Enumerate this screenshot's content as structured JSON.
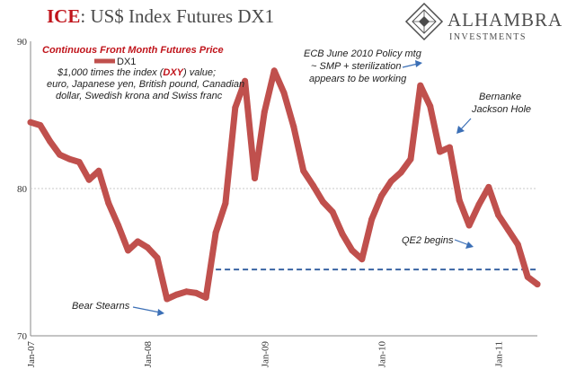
{
  "header": {
    "title_brand": "ICE",
    "title_rest": ": US$ Index Futures DX1",
    "logo_name": "ALHAMBRA",
    "logo_sub": "INVESTMENTS"
  },
  "annotations": {
    "subtitle": "Continuous Front Month Futures Price",
    "desc_line1_pre": "$1,000 times the index (",
    "desc_line1_dxy": "DXY",
    "desc_line1_post": ") value;",
    "desc_line2": "euro, Japanese yen, British pound, Canadian",
    "desc_line3": "dollar, Swedish krona and Swiss franc",
    "ecb_line1": "ECB June 2010 Policy mtg",
    "ecb_line2": "~ SMP + sterilization",
    "ecb_line3": "appears to be working",
    "bernanke_line1": "Bernanke",
    "bernanke_line2": "Jackson Hole",
    "qe2": "QE2 begins",
    "bear_stearns": "Bear Stearns"
  },
  "colors": {
    "series": "#c0504d",
    "accent_red": "#c0141b",
    "reference_line": "#2e5c9e",
    "grid": "#c8c8c8",
    "arrow": "#3b6fb6"
  },
  "chart_data": {
    "type": "line",
    "title": "ICE: US$ Index Futures DX1",
    "subtitle": "Continuous Front Month Futures Price",
    "xlabel": "",
    "ylabel": "",
    "ylim": [
      70,
      90
    ],
    "yticks": [
      70,
      80,
      90
    ],
    "xtick_labels": [
      "Jan-07",
      "Jan-08",
      "Jan-09",
      "Jan-10",
      "Jan-11"
    ],
    "xlim": [
      "2007-01",
      "2011-05"
    ],
    "grid": "horizontal dotted at 80",
    "legend": "top-left",
    "series": [
      {
        "name": "DX1",
        "x": [
          "2007-01",
          "2007-02",
          "2007-03",
          "2007-04",
          "2007-05",
          "2007-06",
          "2007-07",
          "2007-08",
          "2007-09",
          "2007-10",
          "2007-11",
          "2007-12",
          "2008-01",
          "2008-02",
          "2008-03",
          "2008-04",
          "2008-05",
          "2008-06",
          "2008-07",
          "2008-08",
          "2008-09",
          "2008-10",
          "2008-11",
          "2008-12",
          "2009-01",
          "2009-02",
          "2009-03",
          "2009-04",
          "2009-05",
          "2009-06",
          "2009-07",
          "2009-08",
          "2009-09",
          "2009-10",
          "2009-11",
          "2009-12",
          "2010-01",
          "2010-02",
          "2010-03",
          "2010-04",
          "2010-05",
          "2010-06",
          "2010-07",
          "2010-08",
          "2010-09",
          "2010-10",
          "2010-11",
          "2010-12",
          "2011-01",
          "2011-02",
          "2011-03",
          "2011-04",
          "2011-05"
        ],
        "values": [
          84.5,
          84.3,
          83.2,
          82.3,
          82.0,
          81.8,
          80.6,
          81.2,
          79.0,
          77.5,
          75.8,
          76.4,
          76.0,
          75.3,
          72.5,
          72.8,
          73.0,
          72.9,
          72.6,
          77.0,
          79.0,
          85.5,
          87.3,
          80.7,
          85.2,
          88.0,
          86.5,
          84.2,
          81.2,
          80.2,
          79.1,
          78.4,
          76.9,
          75.8,
          75.2,
          77.9,
          79.5,
          80.5,
          81.1,
          82.0,
          87.0,
          85.6,
          82.5,
          82.8,
          79.2,
          77.5,
          78.9,
          80.1,
          78.2,
          77.2,
          76.2,
          74.0,
          73.5
        ]
      }
    ],
    "reference_line": {
      "y": 74.5,
      "from": "2008-08",
      "to": "2011-05",
      "style": "dashed"
    }
  }
}
